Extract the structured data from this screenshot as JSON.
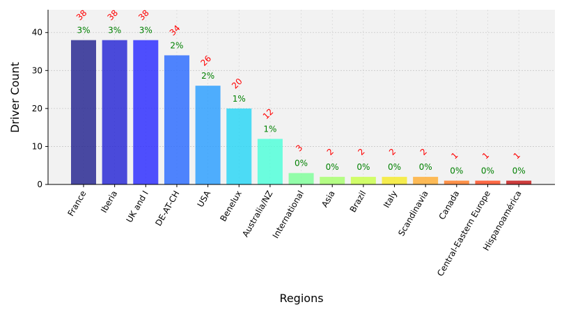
{
  "chart_data": {
    "type": "bar",
    "title": "",
    "xlabel": "Regions",
    "ylabel": "Driver Count",
    "ylim": [
      0,
      46
    ],
    "yticks": [
      0,
      10,
      20,
      30,
      40
    ],
    "grid": true,
    "categories": [
      "France",
      "Iberia",
      "UK and I",
      "DE-AT-CH",
      "USA",
      "Benelux",
      "Australia/NZ",
      "International",
      "Asia",
      "Brazil",
      "Italy",
      "Scandinavia",
      "Canada",
      "Central-Eastern Europe",
      "Hispanoamérica"
    ],
    "values": [
      38,
      38,
      38,
      34,
      26,
      20,
      12,
      3,
      2,
      2,
      2,
      2,
      1,
      1,
      1
    ],
    "value_labels": [
      "38",
      "38",
      "38",
      "34",
      "26",
      "20",
      "12",
      "3",
      "2",
      "2",
      "2",
      "2",
      "1",
      "1",
      "1"
    ],
    "percent_labels": [
      "3%",
      "3%",
      "3%",
      "2%",
      "2%",
      "1%",
      "1%",
      "0%",
      "0%",
      "0%",
      "0%",
      "0%",
      "0%",
      "0%",
      "0%"
    ],
    "bar_colors": [
      "#22228f",
      "#2424d4",
      "#2a2aff",
      "#2a6aff",
      "#2a9dff",
      "#27d6f5",
      "#4dffd9",
      "#7cff99",
      "#a6ff6c",
      "#c9ff4a",
      "#f5ea2a",
      "#ffad33",
      "#ff7a22",
      "#ff4a1f",
      "#c41313"
    ],
    "value_label_color": "#ff0000",
    "percent_label_color": "#008000",
    "plot_background": "#f2f2f2"
  }
}
